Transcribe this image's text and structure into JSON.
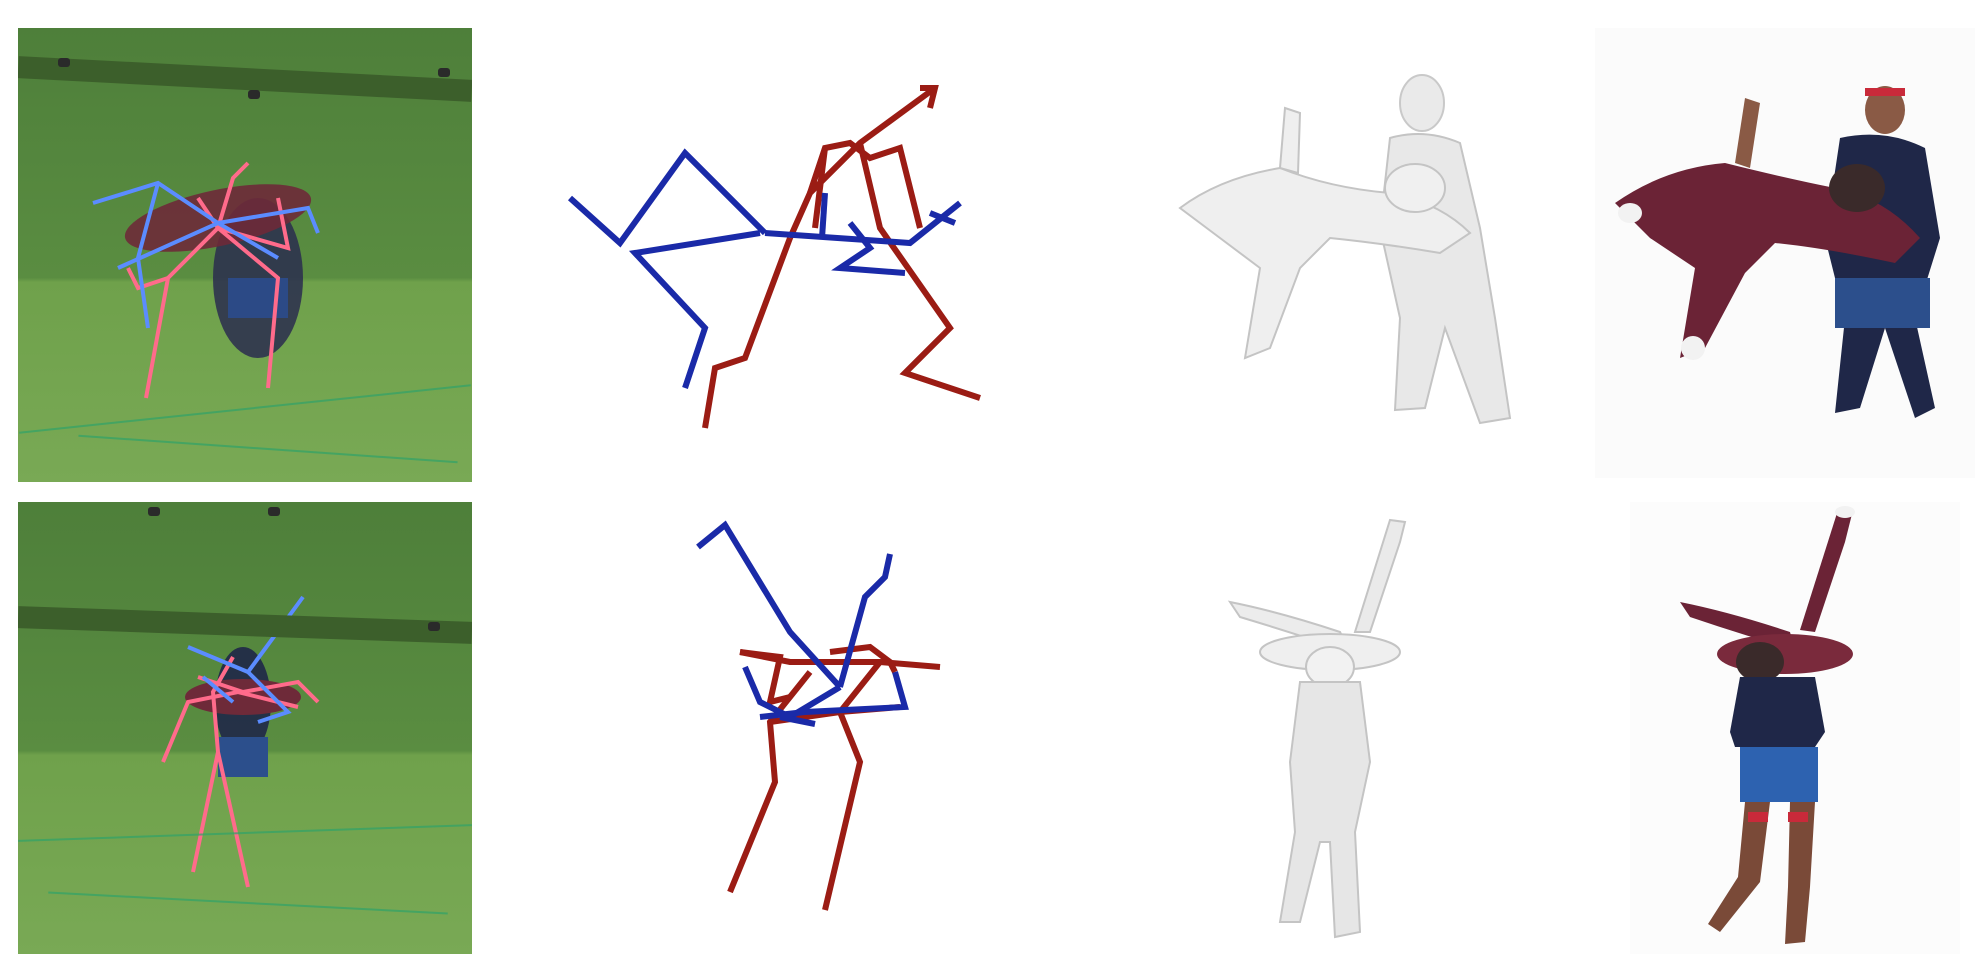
{
  "figure": {
    "rows": [
      {
        "photo": "green-screen-capture-photo-1",
        "skeleton": "3d-skeleton-1",
        "mesh": "untextured-mesh-1",
        "textured": "textured-mesh-1"
      },
      {
        "photo": "green-screen-capture-photo-2",
        "skeleton": "3d-skeleton-2",
        "mesh": "untextured-mesh-2",
        "textured": "textured-mesh-2"
      }
    ],
    "colors": {
      "person_a_2d": "#ff6b8b",
      "person_b_2d": "#5b8cff",
      "person_a_3d": "#9b1c14",
      "person_b_3d": "#1a2aa8",
      "green_screen": "#5a8d41",
      "mesh_gray": "#e6e6e6"
    }
  }
}
